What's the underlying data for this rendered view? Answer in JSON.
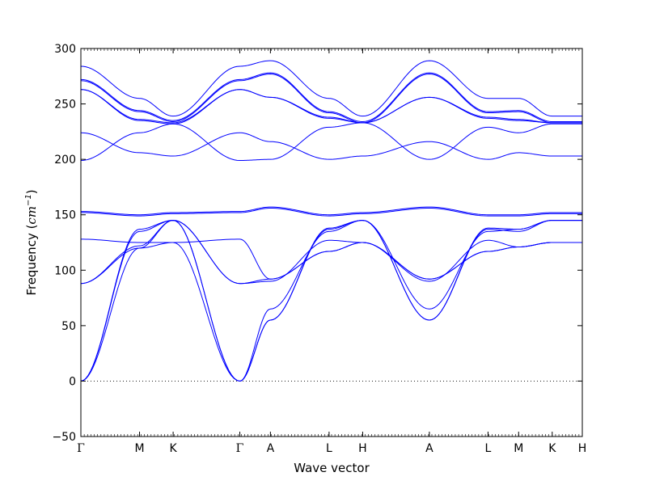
{
  "chart_data": {
    "type": "line",
    "title": "",
    "xlabel": "Wave vector",
    "ylabel": "Frequency (cm⁻¹)",
    "ylabel_parts": {
      "prefix": "Frequency (",
      "unit": "cm",
      "exponent": "−1",
      "suffix": ")"
    },
    "ylim": [
      -50,
      300
    ],
    "xlim": [
      0,
      1
    ],
    "yticks": [
      -50,
      0,
      50,
      100,
      150,
      200,
      250,
      300
    ],
    "xticks": [
      {
        "label": "Γ",
        "x": 0.0
      },
      {
        "label": "M",
        "x": 0.117
      },
      {
        "label": "K",
        "x": 0.184
      },
      {
        "label": "Γ",
        "x": 0.317
      },
      {
        "label": "A",
        "x": 0.378
      },
      {
        "label": "L",
        "x": 0.495
      },
      {
        "label": "H",
        "x": 0.562
      },
      {
        "label": "A",
        "x": 0.695
      },
      {
        "label": "L",
        "x": 0.812
      },
      {
        "label": "M",
        "x": 0.873
      },
      {
        "label": "K",
        "x": 0.94
      },
      {
        "label": "H",
        "x": 1.0
      }
    ],
    "zero_line": true,
    "grid": false,
    "line_color": "#0000ff",
    "series": [
      {
        "values": [
          0,
          135,
          145,
          0,
          55,
          137,
          145,
          55,
          137,
          135,
          145,
          145
        ]
      },
      {
        "values": [
          0,
          137,
          145,
          0,
          55,
          138,
          145,
          55,
          138,
          137,
          145,
          145
        ]
      },
      {
        "values": [
          0,
          120,
          125,
          0,
          65,
          135,
          145,
          65,
          135,
          137,
          145,
          145
        ]
      },
      {
        "values": [
          88,
          120,
          145,
          88,
          90,
          127,
          125,
          90,
          127,
          121,
          125,
          125
        ]
      },
      {
        "values": [
          88,
          122,
          145,
          88,
          92,
          117,
          125,
          92,
          117,
          121,
          125,
          125
        ]
      },
      {
        "values": [
          128,
          125,
          125,
          128,
          92,
          117,
          125,
          92,
          117,
          121,
          125,
          125
        ]
      },
      {
        "values": [
          152,
          149,
          151,
          152,
          156,
          149,
          151,
          156,
          149,
          149,
          151,
          151
        ]
      },
      {
        "values": [
          153,
          150,
          152,
          153,
          157,
          150,
          152,
          157,
          150,
          150,
          152,
          152
        ]
      },
      {
        "values": [
          224,
          206,
          203,
          224,
          216,
          200,
          203,
          216,
          200,
          206,
          203,
          203
        ]
      },
      {
        "values": [
          199,
          224,
          232,
          199,
          200,
          229,
          233,
          200,
          229,
          224,
          232,
          232
        ]
      },
      {
        "values": [
          263,
          235,
          232,
          263,
          256,
          237,
          233,
          256,
          237,
          235,
          233,
          233
        ]
      },
      {
        "values": [
          263,
          236,
          233,
          263,
          256,
          238,
          233,
          256,
          238,
          236,
          233,
          233
        ]
      },
      {
        "values": [
          271,
          243,
          234,
          271,
          277,
          242,
          233,
          277,
          242,
          243,
          233,
          233
        ]
      },
      {
        "values": [
          272,
          244,
          235,
          272,
          278,
          243,
          234,
          278,
          243,
          244,
          234,
          234
        ]
      },
      {
        "values": [
          284,
          255,
          239,
          284,
          289,
          255,
          239,
          289,
          255,
          255,
          239,
          239
        ]
      }
    ]
  }
}
